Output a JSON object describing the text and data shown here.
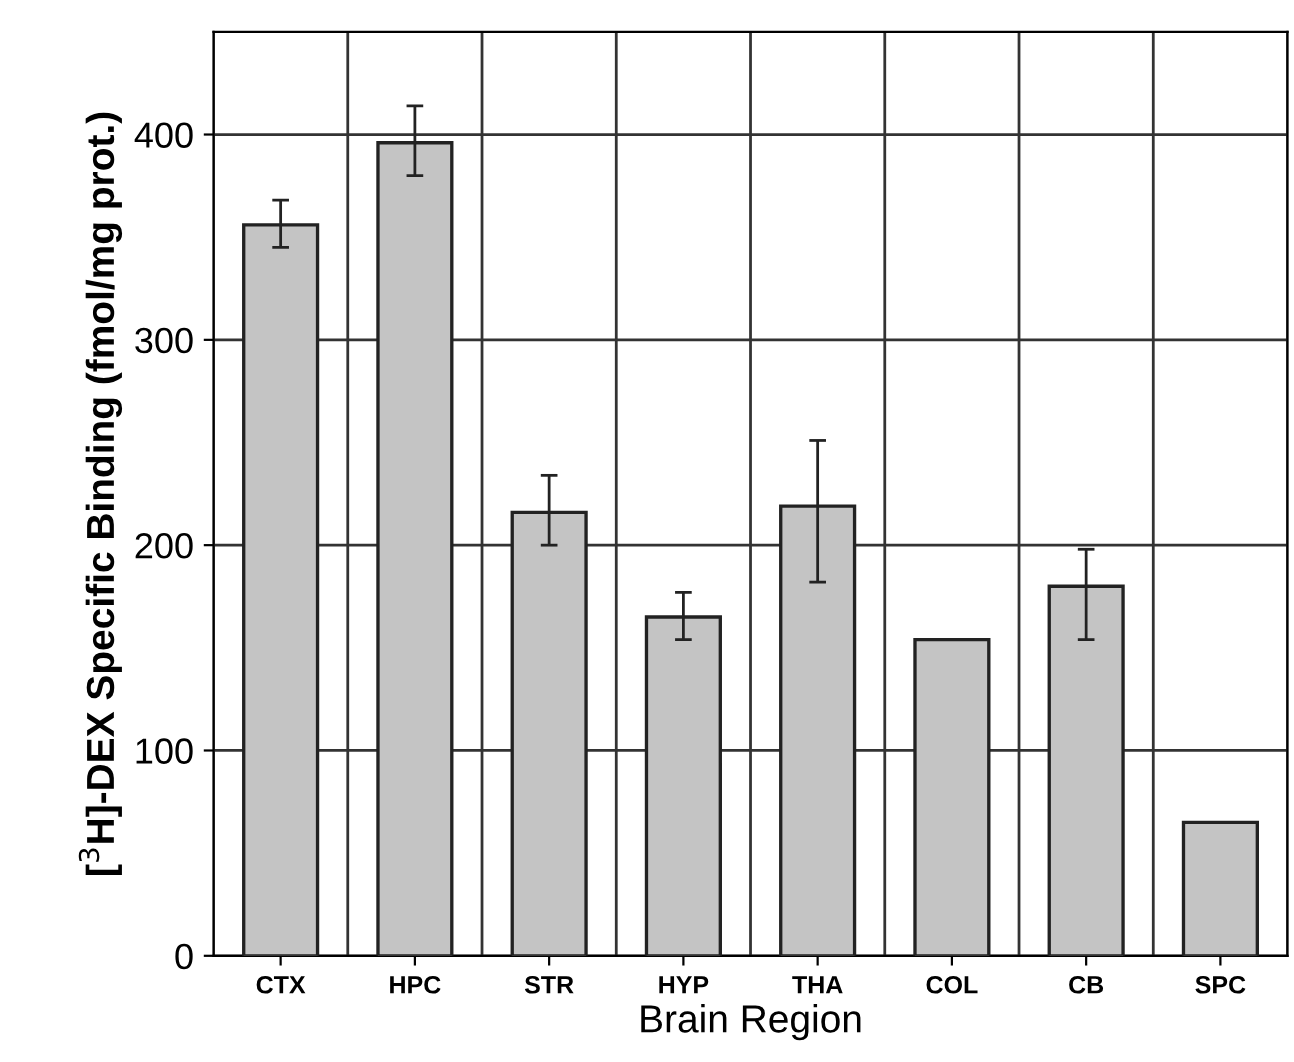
{
  "chart_data": {
    "type": "bar",
    "xlabel": "Brain Region",
    "ylabel": "[$^{3}$H]-DEX Specific Binding (fmol/mg prot.)",
    "categories": [
      "CTX",
      "HPC",
      "STR",
      "HYP",
      "THA",
      "COL",
      "CB",
      "SPC"
    ],
    "values": [
      356,
      396,
      216,
      165,
      219,
      154,
      180,
      65
    ],
    "errors": [
      [
        345,
        368
      ],
      [
        380,
        414
      ],
      [
        200,
        234
      ],
      [
        154,
        177
      ],
      [
        182,
        251
      ],
      null,
      [
        154,
        198
      ],
      null
    ],
    "color": "#c4c4c4",
    "ylim": [
      0,
      450
    ],
    "yticks": [
      0,
      100,
      200,
      300,
      400
    ],
    "grid": true
  }
}
